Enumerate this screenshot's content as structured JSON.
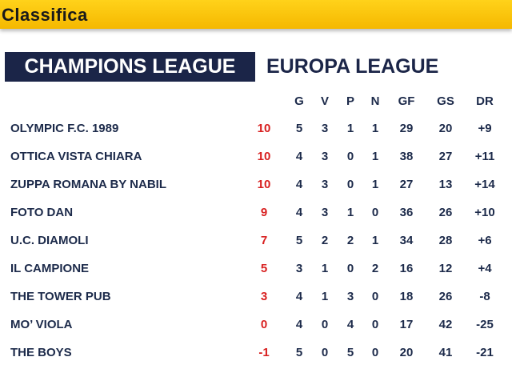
{
  "header": {
    "title": "Classifica"
  },
  "tabs": [
    {
      "label": "CHAMPIONS LEAGUE",
      "active": true
    },
    {
      "label": "EUROPA LEAGUE",
      "active": false
    }
  ],
  "columns": [
    "G",
    "V",
    "P",
    "N",
    "GF",
    "GS",
    "DR"
  ],
  "rows": [
    {
      "team": "OLYMPIC F.C. 1989",
      "pts": "10",
      "g": "5",
      "v": "3",
      "p": "1",
      "n": "1",
      "gf": "29",
      "gs": "20",
      "dr": "+9"
    },
    {
      "team": "OTTICA VISTA CHIARA",
      "pts": "10",
      "g": "4",
      "v": "3",
      "p": "0",
      "n": "1",
      "gf": "38",
      "gs": "27",
      "dr": "+11"
    },
    {
      "team": "ZUPPA ROMANA BY NABIL",
      "pts": "10",
      "g": "4",
      "v": "3",
      "p": "0",
      "n": "1",
      "gf": "27",
      "gs": "13",
      "dr": "+14"
    },
    {
      "team": "FOTO DAN",
      "pts": "9",
      "g": "4",
      "v": "3",
      "p": "1",
      "n": "0",
      "gf": "36",
      "gs": "26",
      "dr": "+10"
    },
    {
      "team": "U.C. DIAMOLI",
      "pts": "7",
      "g": "5",
      "v": "2",
      "p": "2",
      "n": "1",
      "gf": "34",
      "gs": "28",
      "dr": "+6"
    },
    {
      "team": "IL CAMPIONE",
      "pts": "5",
      "g": "3",
      "v": "1",
      "p": "0",
      "n": "2",
      "gf": "16",
      "gs": "12",
      "dr": "+4"
    },
    {
      "team": "THE TOWER PUB",
      "pts": "3",
      "g": "4",
      "v": "1",
      "p": "3",
      "n": "0",
      "gf": "18",
      "gs": "26",
      "dr": "-8"
    },
    {
      "team": "MO’ VIOLA",
      "pts": "0",
      "g": "4",
      "v": "0",
      "p": "4",
      "n": "0",
      "gf": "17",
      "gs": "42",
      "dr": "-25"
    },
    {
      "team": "THE BOYS",
      "pts": "-1",
      "g": "5",
      "v": "0",
      "p": "5",
      "n": "0",
      "gf": "20",
      "gs": "41",
      "dr": "-21"
    }
  ],
  "colors": {
    "header": "#f5b800",
    "active_tab": "#1b2548",
    "points": "#d81f1f",
    "text": "#1c2a4a"
  }
}
